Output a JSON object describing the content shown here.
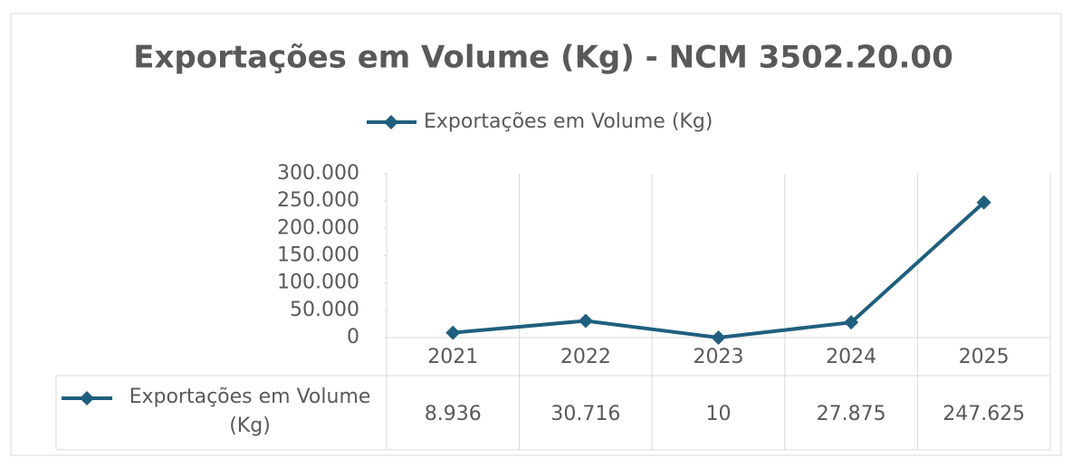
{
  "chart_data": {
    "type": "line",
    "title": "Exportações em Volume (Kg) - NCM 3502.20.00",
    "categories": [
      "2021",
      "2022",
      "2023",
      "2024",
      "2025"
    ],
    "series": [
      {
        "name": "Exportações em Volume (Kg)",
        "color": "#1f5f7e",
        "values": [
          8936,
          30716,
          10,
          27875,
          247625
        ],
        "value_labels": [
          "8.936",
          "30.716",
          "10",
          "27.875",
          "247.625"
        ]
      }
    ],
    "ylim": [
      0,
      300000
    ],
    "yticks": [
      0,
      {
        "value": 50000,
        "label": "50.000"
      },
      {
        "value": 100000,
        "label": "100.000"
      },
      {
        "value": 150000,
        "label": "150.000"
      },
      {
        "value": 200000,
        "label": "200.000"
      },
      {
        "value": 250000,
        "label": "250.000"
      },
      {
        "value": 300000,
        "label": "300.000"
      }
    ],
    "legend": "top"
  }
}
